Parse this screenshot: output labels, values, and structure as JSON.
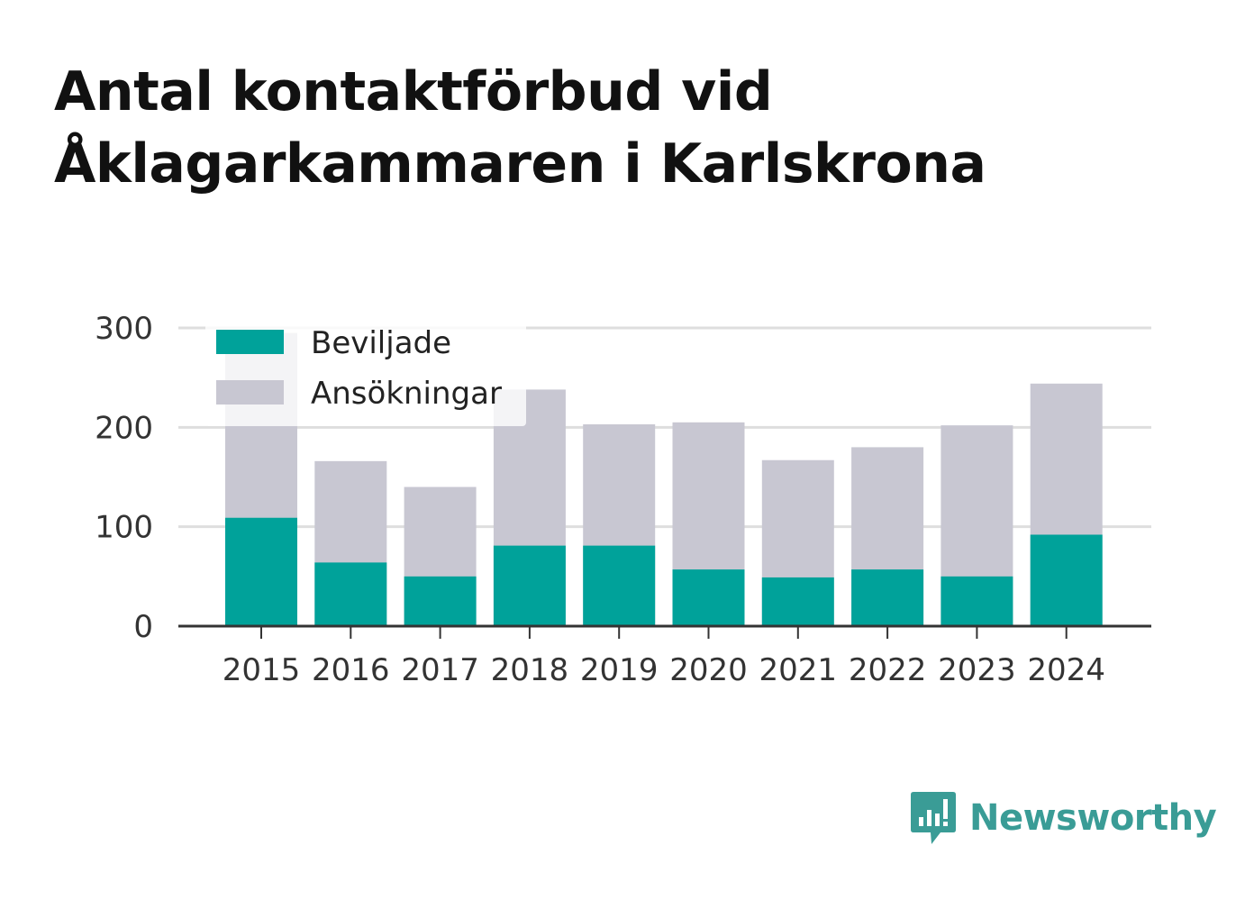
{
  "title_lines": [
    "Antal kontaktförbud vid",
    "Åklagarkammaren i Karlskrona"
  ],
  "brand": {
    "name": "Newsworthy",
    "color": "#3a9c96",
    "icon": "newsworthy-logo-icon"
  },
  "chart_data": {
    "type": "bar",
    "stacked": false,
    "overlaid": true,
    "title": "Antal kontaktförbud vid Åklagarkammaren i Karlskrona",
    "xlabel": "",
    "ylabel": "",
    "ylim": [
      0,
      300
    ],
    "yticks": [
      0,
      100,
      200,
      300
    ],
    "grid": true,
    "legend_position": "top-left",
    "categories": [
      "2015",
      "2016",
      "2017",
      "2018",
      "2019",
      "2020",
      "2021",
      "2022",
      "2023",
      "2024"
    ],
    "series": [
      {
        "name": "Ansökningar",
        "color": "#c8c7d2",
        "values": [
          295,
          166,
          140,
          238,
          203,
          205,
          167,
          180,
          202,
          244
        ]
      },
      {
        "name": "Beviljade",
        "color": "#00a29a",
        "values": [
          109,
          64,
          50,
          81,
          81,
          57,
          49,
          57,
          50,
          92
        ]
      }
    ],
    "legend": [
      "Beviljade",
      "Ansökningar"
    ]
  }
}
